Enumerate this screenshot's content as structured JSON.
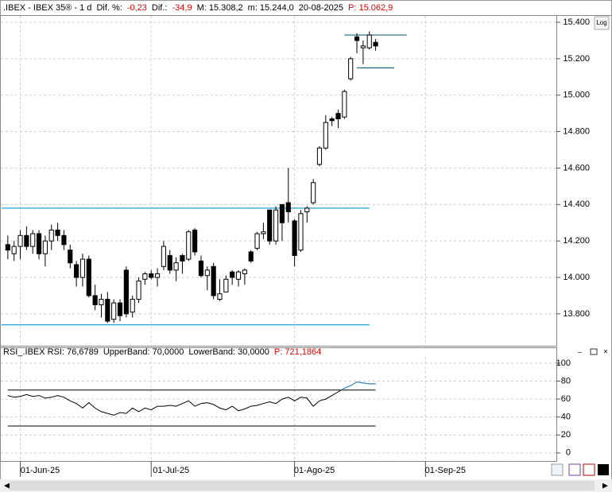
{
  "chart_data": [
    {
      "type": "candlestick",
      "header": [
        {
          "text": ".IBEX - IBEX 35® - 1 d",
          "color": "#000000"
        },
        {
          "text": "Dif. %:",
          "color": "#000000"
        },
        {
          "text": "-0,23",
          "color": "#e00000"
        },
        {
          "text": "Dif.:",
          "color": "#000000"
        },
        {
          "text": "-34,9",
          "color": "#e00000"
        },
        {
          "text": "M: 15.308,2",
          "color": "#000000"
        },
        {
          "text": "m: 15.244,0",
          "color": "#000000"
        },
        {
          "text": "20-08-2025",
          "color": "#000000"
        },
        {
          "text": "P: 15.062,9",
          "color": "#e00000"
        }
      ],
      "x": [
        "2025-05-29",
        "2025-05-30",
        "2025-06-02",
        "2025-06-03",
        "2025-06-04",
        "2025-06-05",
        "2025-06-06",
        "2025-06-09",
        "2025-06-10",
        "2025-06-11",
        "2025-06-12",
        "2025-06-13",
        "2025-06-16",
        "2025-06-17",
        "2025-06-18",
        "2025-06-19",
        "2025-06-20",
        "2025-06-23",
        "2025-06-24",
        "2025-06-25",
        "2025-06-26",
        "2025-06-27",
        "2025-06-30",
        "2025-07-01",
        "2025-07-02",
        "2025-07-03",
        "2025-07-04",
        "2025-07-07",
        "2025-07-08",
        "2025-07-09",
        "2025-07-10",
        "2025-07-11",
        "2025-07-14",
        "2025-07-15",
        "2025-07-16",
        "2025-07-17",
        "2025-07-18",
        "2025-07-21",
        "2025-07-22",
        "2025-07-23",
        "2025-07-24",
        "2025-07-25",
        "2025-07-28",
        "2025-07-29",
        "2025-07-30",
        "2025-07-31",
        "2025-08-01",
        "2025-08-04",
        "2025-08-05",
        "2025-08-06",
        "2025-08-07",
        "2025-08-08",
        "2025-08-11",
        "2025-08-12",
        "2025-08-13",
        "2025-08-14",
        "2025-08-15",
        "2025-08-18",
        "2025-08-19",
        "2025-08-20"
      ],
      "open": [
        14180,
        14130,
        14170,
        14230,
        14170,
        14240,
        14130,
        14200,
        14260,
        14230,
        14150,
        14070,
        14000,
        14100,
        13900,
        13850,
        13880,
        13770,
        13860,
        14040,
        13810,
        13880,
        13990,
        14020,
        14000,
        14060,
        14120,
        14040,
        14120,
        14100,
        14260,
        14090,
        14010,
        14060,
        13880,
        13920,
        14030,
        13990,
        14020,
        14140,
        14160,
        14240,
        14370,
        14200,
        14400,
        14410,
        14310,
        14150,
        14360,
        14410,
        14620,
        14710,
        14870,
        14900,
        14880,
        15090,
        15320,
        15260,
        15260,
        15290
      ],
      "high": [
        14230,
        14200,
        14260,
        14280,
        14260,
        14260,
        14230,
        14290,
        14300,
        14260,
        14180,
        14090,
        14130,
        14120,
        13960,
        13910,
        13920,
        13880,
        13880,
        14060,
        13900,
        14000,
        14030,
        14040,
        14050,
        14200,
        14150,
        14110,
        14130,
        14260,
        14270,
        14120,
        14060,
        14080,
        13990,
        14010,
        14040,
        14040,
        14050,
        14150,
        14250,
        14300,
        14370,
        14390,
        14400,
        14600,
        14320,
        14370,
        14390,
        14540,
        14720,
        14890,
        14880,
        14920,
        15030,
        15210,
        15340,
        15300,
        15350,
        15308
      ],
      "low": [
        14100,
        14090,
        14100,
        14150,
        14130,
        14100,
        14060,
        14150,
        14200,
        14150,
        14050,
        13950,
        13950,
        13890,
        13820,
        13780,
        13750,
        13750,
        13760,
        13780,
        13780,
        13860,
        13960,
        13990,
        13950,
        14040,
        14020,
        13980,
        14020,
        14090,
        14120,
        14000,
        13930,
        13880,
        13870,
        13920,
        13960,
        13950,
        13960,
        14080,
        14150,
        14210,
        14180,
        14180,
        14200,
        14300,
        14060,
        14140,
        14300,
        14400,
        14610,
        14700,
        14830,
        14820,
        14870,
        15080,
        15230,
        15170,
        15250,
        15244
      ],
      "close": [
        14150,
        14170,
        14230,
        14170,
        14240,
        14130,
        14200,
        14260,
        14230,
        14180,
        14080,
        14000,
        14100,
        13900,
        13850,
        13880,
        13760,
        13860,
        13790,
        13800,
        13880,
        13980,
        14020,
        14000,
        14020,
        14170,
        14040,
        14080,
        14090,
        14250,
        14140,
        14010,
        14040,
        13900,
        13910,
        13990,
        14000,
        14030,
        14040,
        14090,
        14240,
        14250,
        14200,
        14370,
        14300,
        14360,
        14120,
        14350,
        14380,
        14520,
        14710,
        14850,
        14860,
        14870,
        15020,
        15200,
        15300,
        15270,
        15330,
        15270
      ],
      "up_color": "#ffffff",
      "down_color": "#000000",
      "xlim": [
        "2025-05-28",
        "2025-09-30"
      ],
      "xticks": [
        {
          "value": "2025-06-01",
          "label": "01-Jun-25"
        },
        {
          "value": "2025-07-01",
          "label": "01-Jul-25"
        },
        {
          "value": "2025-08-01",
          "label": "01-Ago-25"
        },
        {
          "value": "2025-09-01",
          "label": "01-Sep-25"
        }
      ],
      "ylim": [
        13625,
        15435
      ],
      "yticks": [
        {
          "value": 13800,
          "label": "13.800"
        },
        {
          "value": 14000,
          "label": "14.000"
        },
        {
          "value": 14200,
          "label": "14.200"
        },
        {
          "value": 14400,
          "label": "14.400"
        },
        {
          "value": 14600,
          "label": "14.600"
        },
        {
          "value": 14800,
          "label": "14.800"
        },
        {
          "value": 15000,
          "label": "15.000"
        },
        {
          "value": 15200,
          "label": "15.200"
        },
        {
          "value": 15400,
          "label": "15.400"
        }
      ],
      "lines": [
        {
          "value": 14380,
          "from": "2025-05-28",
          "to": "2025-08-19",
          "color": "#1fa3d6"
        },
        {
          "value": 13740,
          "from": "2025-05-28",
          "to": "2025-08-19",
          "color": "#1fa3d6"
        },
        {
          "value": 15330,
          "from": "2025-08-13",
          "to": "2025-08-27",
          "color": "#1a6e7a"
        },
        {
          "value": 15150,
          "from": "2025-08-15",
          "to": "2025-08-25",
          "color": "#1a6e7a"
        }
      ],
      "grid": true,
      "log_button": "Log"
    },
    {
      "type": "line",
      "header": [
        {
          "text": "RSI_.IBEX RSI: 76,6789",
          "color": "#000000"
        },
        {
          "text": "UpperBand: 70,0000",
          "color": "#000000"
        },
        {
          "text": "LowerBand: 30,0000",
          "color": "#000000"
        },
        {
          "text": "P: 721,1864",
          "color": "#e00000"
        }
      ],
      "color": "#000000",
      "values": [
        64,
        62,
        63,
        65,
        63,
        64,
        61,
        62,
        64,
        62,
        58,
        55,
        50,
        56,
        50,
        46,
        44,
        42,
        45,
        44,
        50,
        46,
        50,
        48,
        52,
        52,
        53,
        52,
        55,
        58,
        52,
        55,
        56,
        54,
        50,
        48,
        52,
        47,
        49,
        52,
        53,
        55,
        57,
        55,
        60,
        62,
        58,
        62,
        61,
        52,
        58,
        60,
        64,
        68,
        72,
        75,
        79,
        78,
        77,
        77
      ],
      "over_color": "#3a8fd0",
      "bands": [
        70,
        30
      ],
      "ylim": [
        -9,
        107
      ],
      "yticks": [
        0,
        20,
        40,
        60,
        80,
        100
      ],
      "grid": true
    }
  ]
}
